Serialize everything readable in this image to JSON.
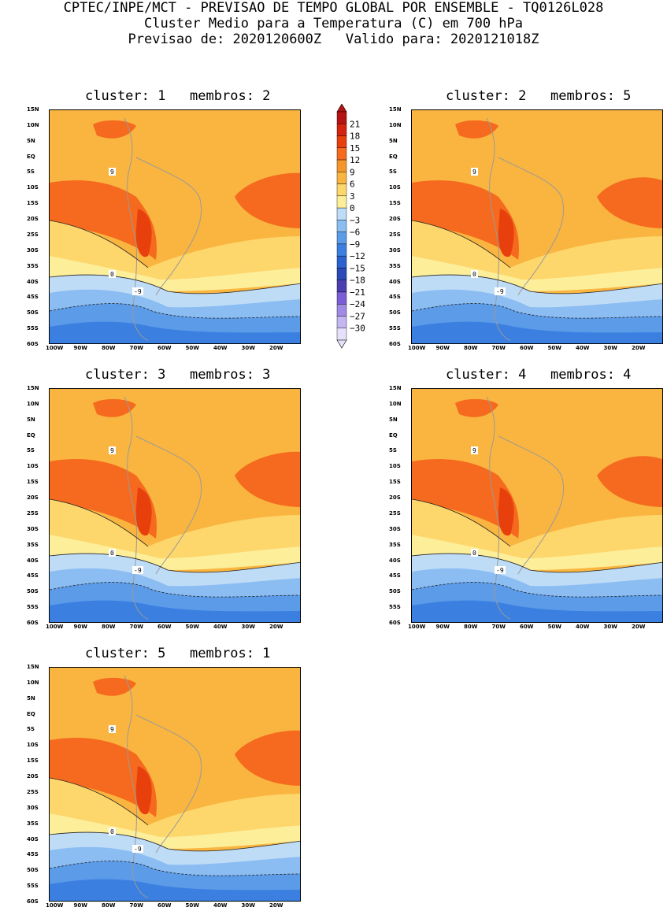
{
  "header": {
    "line1": "CPTEC/INPE/MCT - PREVISAO DE TEMPO GLOBAL POR ENSEMBLE - TQ0126L028",
    "line2": "Cluster Medio para a Temperatura (C) em 700 hPa",
    "line3": "Previsao de: 2020120600Z   Valido para: 2020121018Z"
  },
  "axes": {
    "lat_labels": [
      "15N",
      "10N",
      "5N",
      "EQ",
      "5S",
      "10S",
      "15S",
      "20S",
      "25S",
      "30S",
      "35S",
      "40S",
      "45S",
      "50S",
      "55S",
      "60S"
    ],
    "lon_labels": [
      "100W",
      "90W",
      "80W",
      "70W",
      "60W",
      "50W",
      "40W",
      "30W",
      "20W"
    ]
  },
  "colorbar": {
    "labels": [
      "21",
      "18",
      "15",
      "12",
      "9",
      "6",
      "3",
      "0",
      "-3",
      "-6",
      "-9",
      "-12",
      "-15",
      "-18",
      "-21",
      "-24",
      "-27",
      "-30"
    ],
    "colors": [
      "#b31313",
      "#d4230f",
      "#e8400c",
      "#f56a1e",
      "#f5952a",
      "#f9b53f",
      "#fdd66c",
      "#fdee9a",
      "#bfdcf7",
      "#8bbdf2",
      "#5b9be8",
      "#3b80e0",
      "#2b62cf",
      "#2a4ab8",
      "#4b3fb0",
      "#7b5ed6",
      "#a08ae6",
      "#c4b6f0",
      "#e6e0fa"
    ]
  },
  "panels": [
    {
      "title": "cluster: 1   membros: 2"
    },
    {
      "title": "cluster: 2   membros: 5"
    },
    {
      "title": "cluster: 3   membros: 3"
    },
    {
      "title": "cluster: 4   membros: 4"
    },
    {
      "title": "cluster: 5   membros: 1"
    }
  ],
  "contour_labels": [
    "9",
    "0",
    "-9"
  ]
}
